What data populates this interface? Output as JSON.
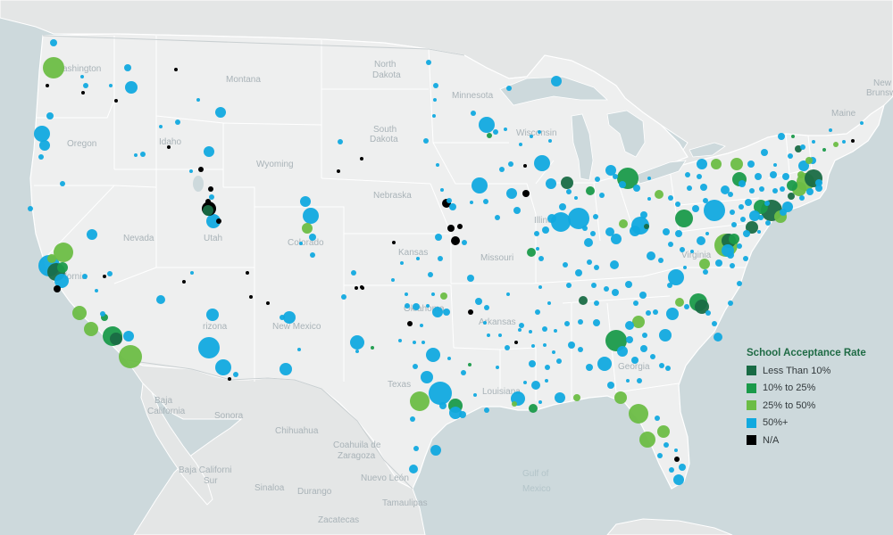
{
  "map": {
    "place_labels": [
      {
        "id": "washington",
        "text": "ashington",
        "kind": "region"
      },
      {
        "id": "montana",
        "text": "Montana",
        "kind": "region"
      },
      {
        "id": "north-dakota-1",
        "text": "North",
        "kind": "region"
      },
      {
        "id": "north-dakota-2",
        "text": "Dakota",
        "kind": "region"
      },
      {
        "id": "minnesota",
        "text": "Minnesota",
        "kind": "region"
      },
      {
        "id": "oregon",
        "text": "Oregon",
        "kind": "region"
      },
      {
        "id": "idaho",
        "text": "Idaho",
        "kind": "region"
      },
      {
        "id": "south-dakota-1",
        "text": "South",
        "kind": "region"
      },
      {
        "id": "south-dakota-2",
        "text": "Dakota",
        "kind": "region"
      },
      {
        "id": "wisconsin",
        "text": "Wisconsin",
        "kind": "region"
      },
      {
        "id": "wyoming",
        "text": "Wyoming",
        "kind": "region"
      },
      {
        "id": "nebraska",
        "text": "Nebraska",
        "kind": "region"
      },
      {
        "id": "nevada",
        "text": "Nevada",
        "kind": "region"
      },
      {
        "id": "utah",
        "text": "Utah",
        "kind": "region"
      },
      {
        "id": "colorado",
        "text": "Colorado",
        "kind": "region"
      },
      {
        "id": "kansas",
        "text": "Kansas",
        "kind": "region"
      },
      {
        "id": "missouri",
        "text": "Missouri",
        "kind": "region"
      },
      {
        "id": "california",
        "text": "fornia",
        "kind": "region"
      },
      {
        "id": "arizona",
        "text": "rizona",
        "kind": "region"
      },
      {
        "id": "new-mexico",
        "text": "New Mexico",
        "kind": "region"
      },
      {
        "id": "oklahoma",
        "text": "Oklahoma",
        "kind": "region"
      },
      {
        "id": "arkansas",
        "text": "Arkansas",
        "kind": "region"
      },
      {
        "id": "texas",
        "text": "Texas",
        "kind": "region"
      },
      {
        "id": "louisiana",
        "text": "Louisiana",
        "kind": "region"
      },
      {
        "id": "illinois",
        "text": "Illino",
        "kind": "region"
      },
      {
        "id": "virginia",
        "text": "Virginia",
        "kind": "region"
      },
      {
        "id": "georgia",
        "text": "Georgia",
        "kind": "region"
      },
      {
        "id": "maine",
        "text": "Maine",
        "kind": "region"
      },
      {
        "id": "new",
        "text": "New",
        "kind": "region"
      },
      {
        "id": "brunswick",
        "text": "Brunsw",
        "kind": "region"
      },
      {
        "id": "baja-california-1",
        "text": "Baja",
        "kind": "region"
      },
      {
        "id": "baja-california-2",
        "text": "California",
        "kind": "region"
      },
      {
        "id": "sonora",
        "text": "Sonora",
        "kind": "region"
      },
      {
        "id": "chihuahua",
        "text": "Chihuahua",
        "kind": "region"
      },
      {
        "id": "coahuila-1",
        "text": "Coahuila de",
        "kind": "region"
      },
      {
        "id": "coahuila-2",
        "text": "Zaragoza",
        "kind": "region"
      },
      {
        "id": "nuevo-leon",
        "text": "Nuevo León",
        "kind": "region"
      },
      {
        "id": "durango",
        "text": "Durango",
        "kind": "region"
      },
      {
        "id": "sinaloa",
        "text": "Sinaloa",
        "kind": "region"
      },
      {
        "id": "tamaulipas",
        "text": "Tamaulipas",
        "kind": "region"
      },
      {
        "id": "zacatecas",
        "text": "Zacatecas",
        "kind": "region"
      },
      {
        "id": "baja-california-sur-1",
        "text": "Baja Californi",
        "kind": "region"
      },
      {
        "id": "baja-california-sur-2",
        "text": "Sur",
        "kind": "region"
      },
      {
        "id": "gulf-of-mexico-1",
        "text": "Gulf of",
        "kind": "sea"
      },
      {
        "id": "gulf-of-mexico-2",
        "text": "Mexico",
        "kind": "sea"
      }
    ]
  },
  "legend": {
    "title": "School Acceptance Rate",
    "items": [
      {
        "key": "lt10",
        "label": "Less Than 10%",
        "color": "#196b45"
      },
      {
        "key": "10to25",
        "label": "10% to 25%",
        "color": "#1a9a4a"
      },
      {
        "key": "25to50",
        "label": "25% to 50%",
        "color": "#6cbd45"
      },
      {
        "key": "50plus",
        "label": "50%+",
        "color": "#11a9df"
      },
      {
        "key": "na",
        "label": "N/A",
        "color": "#000000"
      }
    ]
  }
}
